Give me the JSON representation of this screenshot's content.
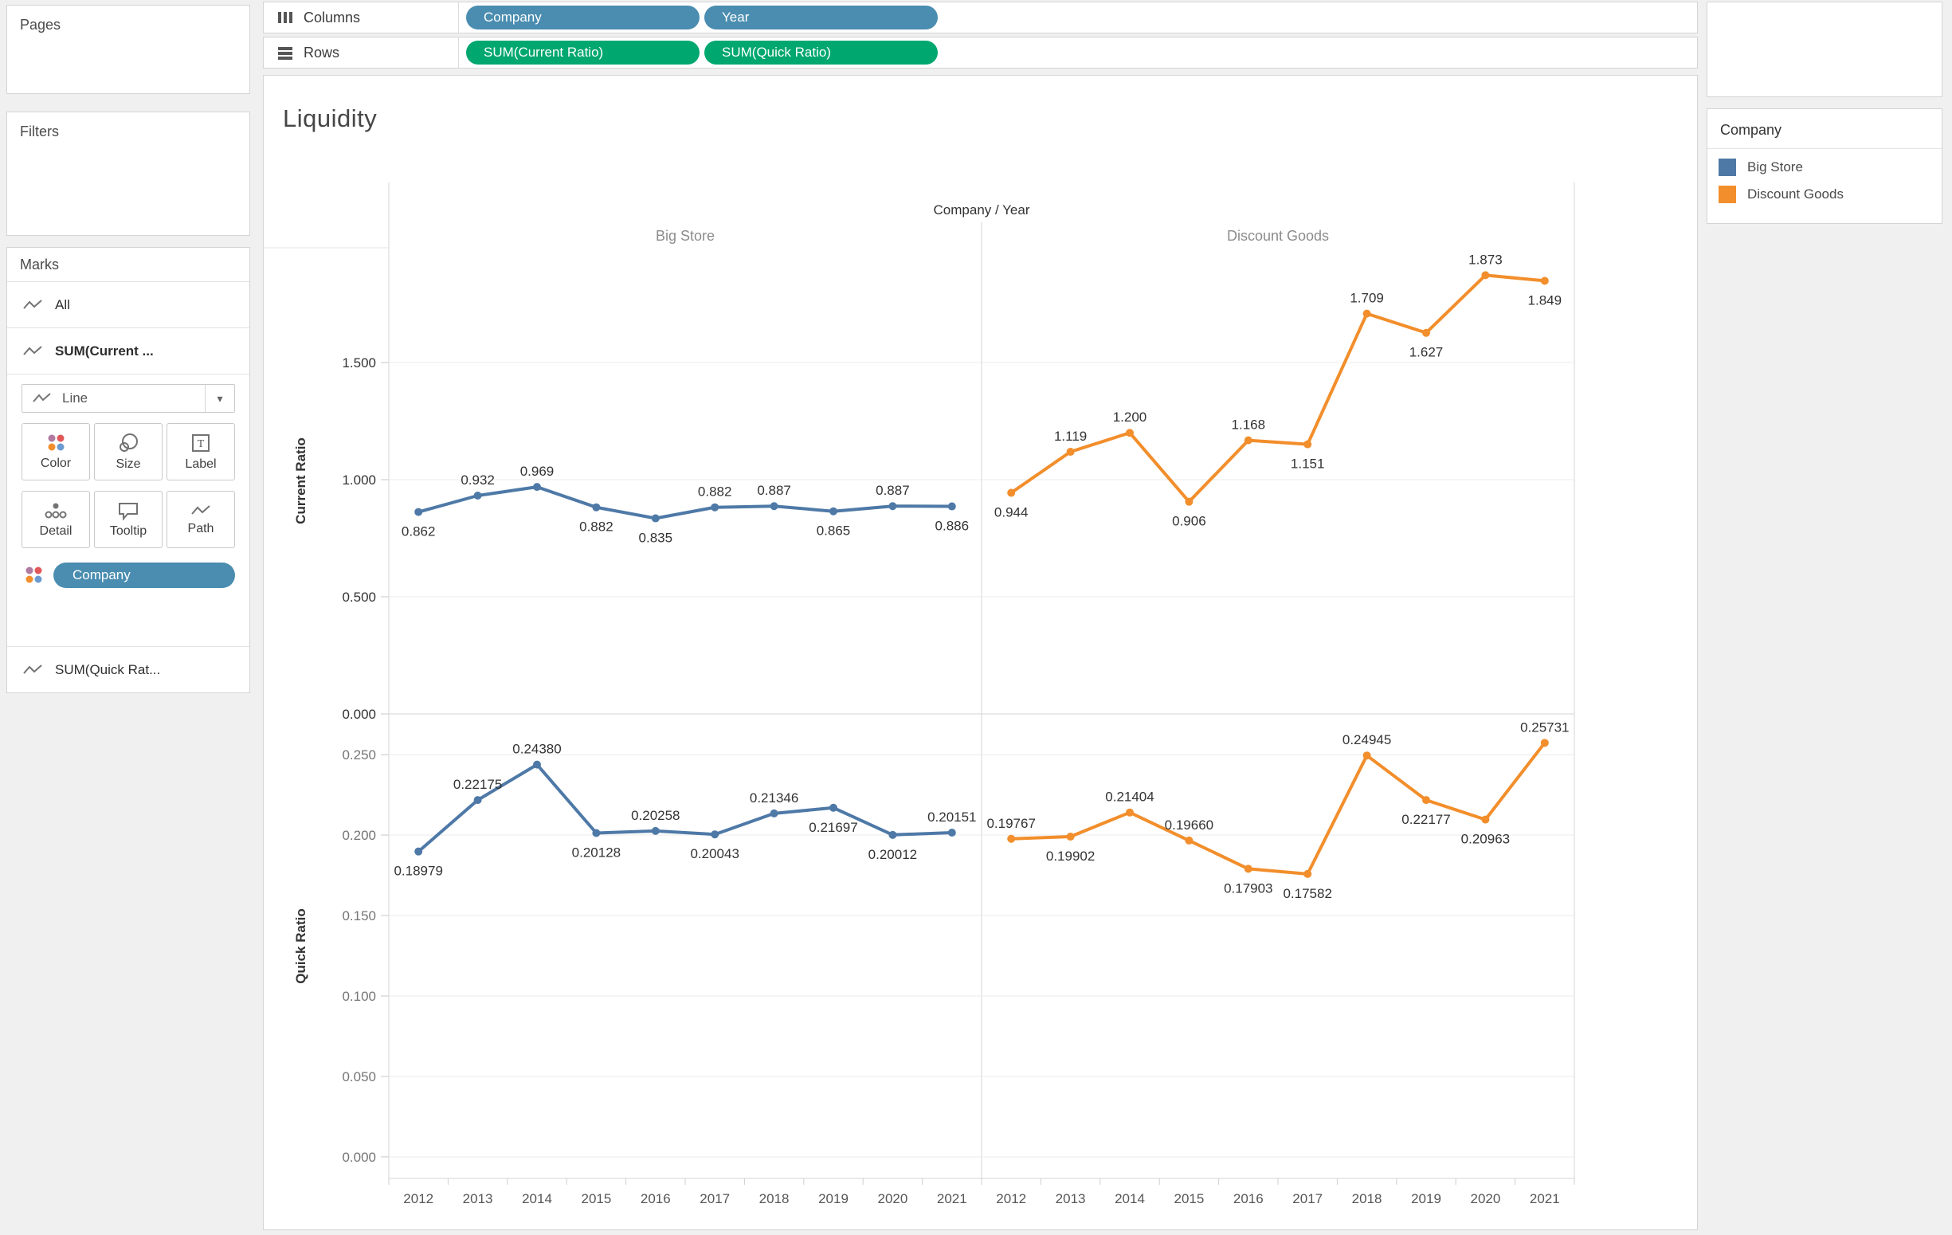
{
  "sidebar": {
    "pages_title": "Pages",
    "filters_title": "Filters"
  },
  "shelves": {
    "columns_label": "Columns",
    "rows_label": "Rows",
    "columns_pills": [
      "Company",
      "Year"
    ],
    "rows_pills": [
      "SUM(Current Ratio)",
      "SUM(Quick Ratio)"
    ]
  },
  "marks": {
    "title": "Marks",
    "items": [
      {
        "label": "All"
      },
      {
        "label": "SUM(Current ..."
      },
      {
        "label": "SUM(Quick Rat..."
      }
    ],
    "mark_type": "Line",
    "buttons": [
      "Color",
      "Size",
      "Label",
      "Detail",
      "Tooltip",
      "Path"
    ],
    "color_pill": "Company"
  },
  "legend": {
    "title": "Company",
    "items": [
      {
        "label": "Big Store",
        "color": "#4e79a7"
      },
      {
        "label": "Discount Goods",
        "color": "#f28e2b"
      }
    ]
  },
  "colors": {
    "dimension_pill": "#4a8db0",
    "measure_pill": "#00a76f",
    "big_store": "#4e79a7",
    "discount_goods": "#f28e2b",
    "grid": "#ebebeb"
  },
  "chart_data": {
    "type": "line",
    "title": "Liquidity",
    "facet_header": "Company / Year",
    "facets": [
      "Big Store",
      "Discount Goods"
    ],
    "x": [
      2012,
      2013,
      2014,
      2015,
      2016,
      2017,
      2018,
      2019,
      2020,
      2021
    ],
    "legend_position": "right",
    "grid": true,
    "rows": [
      {
        "ylabel": "Current Ratio",
        "ylim": [
          0,
          1.99
        ],
        "yticks": [
          0,
          0.5,
          1.0,
          1.5
        ],
        "ytick_labels": [
          "0.000",
          "0.500",
          "1.000",
          "1.500"
        ],
        "tick_color": "#333333",
        "series": [
          {
            "name": "Big Store",
            "color": "#4e79a7",
            "values": [
              0.862,
              0.932,
              0.969,
              0.882,
              0.835,
              0.882,
              0.887,
              0.865,
              0.887,
              0.886
            ],
            "labels": [
              "0.862",
              "0.932",
              "0.969",
              "0.882",
              "0.835",
              "0.882",
              "0.887",
              "0.865",
              "0.887",
              "0.886"
            ],
            "label_side": [
              "b",
              "a",
              "a",
              "b",
              "b",
              "a",
              "a",
              "b",
              "a",
              "b"
            ]
          },
          {
            "name": "Discount Goods",
            "color": "#f28e2b",
            "values": [
              0.944,
              1.119,
              1.2,
              0.906,
              1.168,
              1.151,
              1.709,
              1.627,
              1.873,
              1.849
            ],
            "labels": [
              "0.944",
              "1.119",
              "1.200",
              "0.906",
              "1.168",
              "1.151",
              "1.709",
              "1.627",
              "1.873",
              "1.849"
            ],
            "label_side": [
              "b",
              "a",
              "a",
              "b",
              "a",
              "b",
              "a",
              "b",
              "a",
              "b"
            ]
          }
        ]
      },
      {
        "ylabel": "Quick Ratio",
        "ylim": [
          -0.0134,
          0.2753
        ],
        "yticks": [
          0,
          0.05,
          0.1,
          0.15,
          0.2,
          0.25
        ],
        "ytick_labels": [
          "0.000",
          "0.050",
          "0.100",
          "0.150",
          "0.200",
          "0.250"
        ],
        "tick_color": "#757575",
        "series": [
          {
            "name": "Big Store",
            "color": "#4e79a7",
            "values": [
              0.18979,
              0.22175,
              0.2438,
              0.20128,
              0.20258,
              0.20043,
              0.21346,
              0.21697,
              0.20012,
              0.20151
            ],
            "labels": [
              "0.18979",
              "0.22175",
              "0.24380",
              "0.20128",
              "0.20258",
              "0.20043",
              "0.21346",
              "0.21697",
              "0.20012",
              "0.20151"
            ],
            "label_side": [
              "b",
              "a",
              "a",
              "b",
              "a",
              "b",
              "a",
              "b",
              "b",
              "a"
            ]
          },
          {
            "name": "Discount Goods",
            "color": "#f28e2b",
            "values": [
              0.19767,
              0.19902,
              0.21404,
              0.1966,
              0.17903,
              0.17582,
              0.24945,
              0.22177,
              0.20963,
              0.25731
            ],
            "labels": [
              "0.19767",
              "0.19902",
              "0.21404",
              "0.19660",
              "0.17903",
              "0.17582",
              "0.24945",
              "0.22177",
              "0.20963",
              "0.25731"
            ],
            "label_side": [
              "a",
              "b",
              "a",
              "a",
              "b",
              "b",
              "a",
              "b",
              "b",
              "a"
            ]
          }
        ]
      }
    ]
  }
}
